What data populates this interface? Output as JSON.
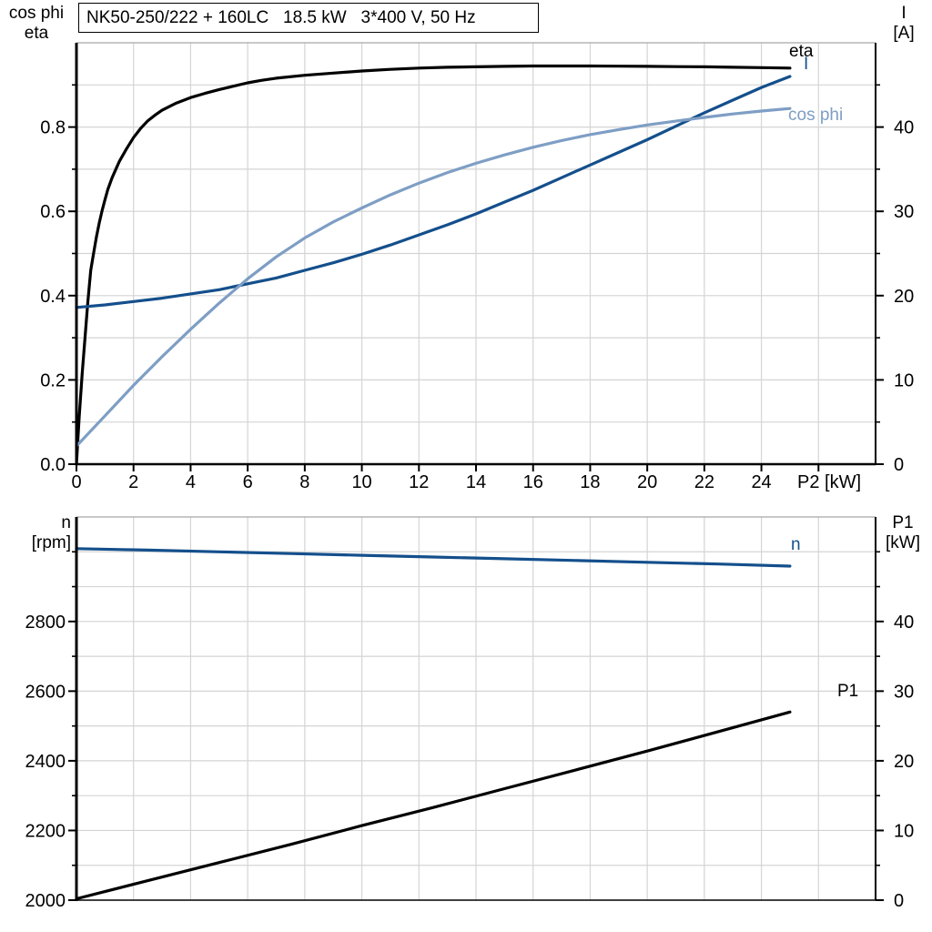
{
  "title_box": {
    "text": "NK50-250/222 + 160LC   18.5 kW   3*400 V, 50 Hz"
  },
  "colors": {
    "black": "#000000",
    "dark_blue": "#144f8c",
    "light_blue": "#7e9ec4",
    "grid": "#d4d4d4",
    "frame": "#000000",
    "frame_top": "#a6a6a6"
  },
  "chart_data": [
    {
      "type": "line",
      "id": "motor-electrical-curves",
      "xlabel": "P2 [kW]",
      "x_range": [
        0,
        28
      ],
      "x_grid": [
        2,
        4,
        6,
        8,
        10,
        12,
        14,
        16,
        18,
        20,
        22,
        24,
        26
      ],
      "x_ticks": {
        "values": [
          0,
          2,
          4,
          6,
          8,
          10,
          12,
          14,
          16,
          18,
          20,
          22,
          24,
          26
        ],
        "labels": [
          "0",
          "2",
          "4",
          "6",
          "8",
          "10",
          "12",
          "14",
          "16",
          "18",
          "20",
          "22",
          "24",
          ""
        ]
      },
      "left_axis": {
        "title": [
          "cos phi",
          "eta"
        ],
        "range": [
          0,
          1.0
        ],
        "major": [
          0,
          0.2,
          0.4,
          0.6,
          0.8
        ],
        "labels": [
          "0.0",
          "0.2",
          "0.4",
          "0.6",
          "0.8"
        ],
        "minor": [
          0.1,
          0.3,
          0.5,
          0.7,
          0.9
        ],
        "grid": [
          0.1,
          0.2,
          0.3,
          0.4,
          0.5,
          0.6,
          0.7,
          0.8,
          0.9
        ]
      },
      "right_axis": {
        "title": [
          "I",
          "[A]"
        ],
        "range": [
          0,
          50
        ],
        "major": [
          0,
          10,
          20,
          30,
          40
        ],
        "labels": [
          "0",
          "10",
          "20",
          "30",
          "40"
        ],
        "minor": [
          5,
          15,
          25,
          35,
          45
        ]
      },
      "series": [
        {
          "name": "eta",
          "label": "eta",
          "axis": "left",
          "color": "black",
          "points": [
            [
              0,
              0
            ],
            [
              0.05,
              0.06
            ],
            [
              0.1,
              0.115
            ],
            [
              0.15,
              0.165
            ],
            [
              0.2,
              0.215
            ],
            [
              0.3,
              0.3
            ],
            [
              0.4,
              0.385
            ],
            [
              0.5,
              0.46
            ],
            [
              0.6,
              0.5
            ],
            [
              0.7,
              0.54
            ],
            [
              0.8,
              0.573
            ],
            [
              0.9,
              0.602
            ],
            [
              1,
              0.628
            ],
            [
              1.1,
              0.652
            ],
            [
              1.25,
              0.68
            ],
            [
              1.5,
              0.718
            ],
            [
              1.75,
              0.748
            ],
            [
              2,
              0.775
            ],
            [
              2.25,
              0.797
            ],
            [
              2.5,
              0.815
            ],
            [
              2.75,
              0.828
            ],
            [
              3,
              0.84
            ],
            [
              3.5,
              0.857
            ],
            [
              4,
              0.87
            ],
            [
              4.5,
              0.88
            ],
            [
              5,
              0.889
            ],
            [
              5.5,
              0.897
            ],
            [
              6,
              0.905
            ],
            [
              6.5,
              0.911
            ],
            [
              7,
              0.916
            ],
            [
              8,
              0.923
            ],
            [
              9,
              0.928
            ],
            [
              10,
              0.933
            ],
            [
              11,
              0.937
            ],
            [
              12,
              0.94
            ],
            [
              13,
              0.942
            ],
            [
              14,
              0.943
            ],
            [
              15,
              0.944
            ],
            [
              16,
              0.945
            ],
            [
              17,
              0.945
            ],
            [
              18,
              0.945
            ],
            [
              19,
              0.9445
            ],
            [
              20,
              0.944
            ],
            [
              21,
              0.9435
            ],
            [
              22,
              0.943
            ],
            [
              23,
              0.942
            ],
            [
              24,
              0.941
            ],
            [
              25,
              0.94
            ]
          ]
        },
        {
          "name": "I",
          "label": "I",
          "axis": "right",
          "color": "dark_blue",
          "points": [
            [
              0,
              18.6
            ],
            [
              1,
              18.9
            ],
            [
              2,
              19.3
            ],
            [
              3,
              19.7
            ],
            [
              4,
              20.2
            ],
            [
              5,
              20.7
            ],
            [
              6,
              21.4
            ],
            [
              7,
              22.1
            ],
            [
              8,
              23.0
            ],
            [
              9,
              23.9
            ],
            [
              10,
              24.9
            ],
            [
              11,
              26.0
            ],
            [
              12,
              27.2
            ],
            [
              13,
              28.4
            ],
            [
              14,
              29.7
            ],
            [
              15,
              31.1
            ],
            [
              16,
              32.5
            ],
            [
              17,
              34.0
            ],
            [
              18,
              35.5
            ],
            [
              19,
              37.0
            ],
            [
              20,
              38.5
            ],
            [
              21,
              40.1
            ],
            [
              22,
              41.7
            ],
            [
              23,
              43.2
            ],
            [
              24,
              44.7
            ],
            [
              25,
              46.0
            ]
          ]
        },
        {
          "name": "cos phi",
          "label": "cos phi",
          "axis": "left",
          "color": "light_blue",
          "points": [
            [
              0,
              0.043
            ],
            [
              1,
              0.115
            ],
            [
              2,
              0.187
            ],
            [
              3,
              0.255
            ],
            [
              4,
              0.32
            ],
            [
              5,
              0.382
            ],
            [
              6,
              0.44
            ],
            [
              7,
              0.492
            ],
            [
              8,
              0.537
            ],
            [
              9,
              0.575
            ],
            [
              10,
              0.608
            ],
            [
              11,
              0.639
            ],
            [
              12,
              0.667
            ],
            [
              13,
              0.692
            ],
            [
              14,
              0.714
            ],
            [
              15,
              0.734
            ],
            [
              16,
              0.752
            ],
            [
              17,
              0.768
            ],
            [
              18,
              0.782
            ],
            [
              19,
              0.794
            ],
            [
              20,
              0.805
            ],
            [
              21,
              0.814
            ],
            [
              22,
              0.823
            ],
            [
              23,
              0.831
            ],
            [
              24,
              0.838
            ],
            [
              25,
              0.844
            ]
          ]
        }
      ]
    },
    {
      "type": "line",
      "id": "speed-and-input-power",
      "xlabel": "",
      "x_range": [
        0,
        28
      ],
      "x_grid": [
        2,
        4,
        6,
        8,
        10,
        12,
        14,
        16,
        18,
        20,
        22,
        24,
        26
      ],
      "x_ticks": {
        "values": [],
        "labels": []
      },
      "left_axis": {
        "title": [
          "n",
          "[rpm]"
        ],
        "range": [
          2000,
          3100
        ],
        "major": [
          2000,
          2200,
          2400,
          2600,
          2800
        ],
        "labels": [
          "2000",
          "2200",
          "2400",
          "2600",
          "2800"
        ],
        "minor": [
          2100,
          2300,
          2500,
          2700,
          2900,
          3000
        ],
        "grid": [
          2100,
          2200,
          2300,
          2400,
          2500,
          2600,
          2700,
          2800,
          2900,
          3000
        ]
      },
      "right_axis": {
        "title": [
          "P1",
          "[kW]"
        ],
        "range": [
          0,
          55
        ],
        "major": [
          0,
          10,
          20,
          30,
          40
        ],
        "labels": [
          "0",
          "10",
          "20",
          "30",
          "40"
        ],
        "minor": [
          5,
          15,
          25,
          35,
          45,
          50
        ]
      },
      "series": [
        {
          "name": "n",
          "label": "n",
          "axis": "left",
          "color": "dark_blue",
          "points": [
            [
              0,
              3009
            ],
            [
              2.5,
              3005
            ],
            [
              5,
              3000
            ],
            [
              7.5,
              2995
            ],
            [
              10,
              2990
            ],
            [
              12.5,
              2985
            ],
            [
              15,
              2980
            ],
            [
              17.5,
              2975
            ],
            [
              20,
              2970
            ],
            [
              22.5,
              2965
            ],
            [
              25,
              2959
            ]
          ]
        },
        {
          "name": "P1",
          "label": "P1",
          "axis": "right",
          "color": "black",
          "points": [
            [
              0,
              0.2
            ],
            [
              2.5,
              2.8
            ],
            [
              5,
              5.4
            ],
            [
              7.5,
              8.0
            ],
            [
              10,
              10.7
            ],
            [
              12.5,
              13.3
            ],
            [
              15,
              16.0
            ],
            [
              17.5,
              18.7
            ],
            [
              20,
              21.4
            ],
            [
              22.5,
              24.2
            ],
            [
              25,
              27.0
            ]
          ]
        }
      ]
    }
  ]
}
